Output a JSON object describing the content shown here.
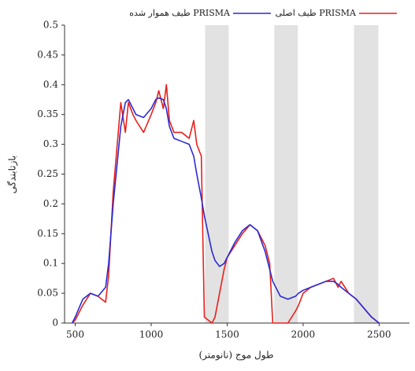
{
  "chart_data": {
    "type": "line",
    "x_label": "طول موج (نانومتر)",
    "y_label": "بازتابندگی",
    "x": [
      480,
      500,
      550,
      600,
      650,
      700,
      720,
      750,
      800,
      830,
      850,
      880,
      900,
      950,
      1000,
      1030,
      1050,
      1080,
      1100,
      1120,
      1150,
      1200,
      1250,
      1280,
      1300,
      1330,
      1350,
      1400,
      1420,
      1450,
      1480,
      1500,
      1550,
      1600,
      1650,
      1700,
      1750,
      1780,
      1800,
      1850,
      1900,
      1950,
      1970,
      2000,
      2050,
      2100,
      2150,
      2200,
      2230,
      2250,
      2300,
      2350,
      2400,
      2450,
      2500
    ],
    "series": [
      {
        "name": "طیف اصلی PRISMA",
        "color": "#e8201c",
        "values": [
          0,
          0.005,
          0.03,
          0.05,
          0.045,
          0.035,
          0.08,
          0.22,
          0.37,
          0.32,
          0.37,
          0.35,
          0.34,
          0.32,
          0.35,
          0.37,
          0.39,
          0.36,
          0.4,
          0.34,
          0.32,
          0.32,
          0.31,
          0.34,
          0.3,
          0.28,
          0.01,
          0,
          0.01,
          0.05,
          0.09,
          0.11,
          0.13,
          0.15,
          0.165,
          0.155,
          0.13,
          0.1,
          0,
          0,
          0,
          0.02,
          0.03,
          0.05,
          0.06,
          0.065,
          0.07,
          0.075,
          0.06,
          0.07,
          0.05,
          0.04,
          0.025,
          0.01,
          0
        ]
      },
      {
        "name": "طیف هموار شده PRISMA",
        "color": "#2a2ad6",
        "values": [
          0,
          0.01,
          0.04,
          0.05,
          0.045,
          0.06,
          0.1,
          0.2,
          0.33,
          0.37,
          0.375,
          0.36,
          0.35,
          0.345,
          0.36,
          0.375,
          0.378,
          0.375,
          0.36,
          0.33,
          0.31,
          0.305,
          0.3,
          0.28,
          0.25,
          0.21,
          0.18,
          0.12,
          0.105,
          0.095,
          0.1,
          0.11,
          0.135,
          0.155,
          0.165,
          0.155,
          0.12,
          0.09,
          0.07,
          0.045,
          0.04,
          0.045,
          0.05,
          0.055,
          0.06,
          0.065,
          0.07,
          0.07,
          0.065,
          0.06,
          0.05,
          0.04,
          0.025,
          0.01,
          0
        ]
      }
    ],
    "shaded_bands": [
      [
        1355,
        1510
      ],
      [
        1810,
        1965
      ],
      [
        2335,
        2495
      ]
    ],
    "xlim": [
      430,
      2700
    ],
    "xticks": [
      500,
      1000,
      1500,
      2000,
      2500
    ],
    "ylim": [
      0,
      0.5
    ],
    "yticks": [
      0,
      0.05,
      0.1,
      0.15,
      0.2,
      0.25,
      0.3,
      0.35,
      0.4,
      0.45,
      0.5
    ]
  }
}
